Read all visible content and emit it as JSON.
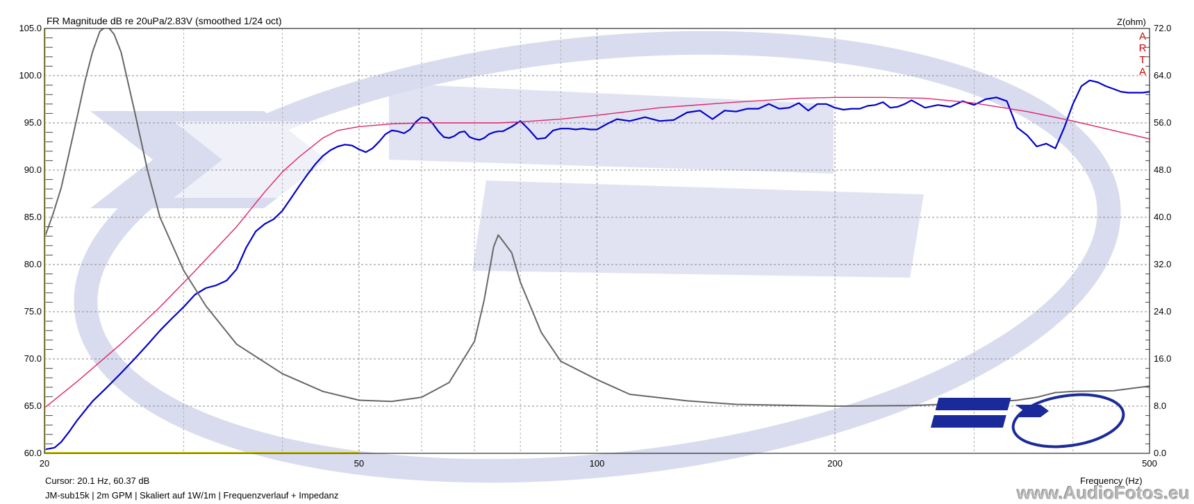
{
  "title": "FR Magnitude dB re 20uPa/2.83V (smoothed 1/24 oct)",
  "right_axis_title": "Z(ohm)",
  "arta_label": [
    "A",
    "R",
    "T",
    "A"
  ],
  "cursor": "Cursor: 20.1 Hz, 60.37 dB",
  "footer": "JM-sub15k | 2m GPM | Skaliert auf 1W/1m | Frequenzverlauf + Impedanz",
  "xlabel": "Frequency (Hz)",
  "watermark": "www.AudioFotos.eu",
  "chart_data": {
    "type": "line",
    "x_scale": "log",
    "xlim": [
      20,
      500
    ],
    "ylim": [
      60,
      105
    ],
    "y2lim": [
      0,
      72
    ],
    "x_ticks": [
      {
        "v": 20,
        "label": "20"
      },
      {
        "v": 50,
        "label": "50"
      },
      {
        "v": 100,
        "label": "100"
      },
      {
        "v": 200,
        "label": "200"
      },
      {
        "v": 500,
        "label": "500"
      }
    ],
    "y_ticks": [
      "60.0",
      "65.0",
      "70.0",
      "75.0",
      "80.0",
      "85.0",
      "90.0",
      "95.0",
      "100.0",
      "105.0"
    ],
    "y2_ticks": [
      "0.0",
      "8.0",
      "16.0",
      "24.0",
      "32.0",
      "40.0",
      "48.0",
      "56.0",
      "64.0",
      "72.0"
    ],
    "grid": true,
    "series": [
      {
        "color": "#0000cc",
        "axis": "left",
        "x": [
          20,
          20.6,
          21,
          21.5,
          22,
          23,
          24,
          25,
          26,
          27,
          28,
          29,
          30,
          31,
          32,
          33,
          34,
          35,
          36,
          37,
          38,
          39,
          40,
          41,
          42,
          43,
          44,
          45,
          46,
          47,
          48,
          49,
          50,
          51,
          52,
          53,
          54,
          55,
          56,
          57,
          58,
          59,
          60,
          61,
          62,
          63,
          64,
          65,
          66,
          67,
          68,
          69,
          70,
          71,
          72,
          73,
          74,
          75,
          76,
          78,
          80,
          82,
          84,
          86,
          88,
          90,
          92,
          94,
          96,
          98,
          100,
          103,
          106,
          110,
          115,
          120,
          125,
          130,
          135,
          140,
          145,
          150,
          155,
          160,
          165,
          170,
          175,
          180,
          185,
          190,
          195,
          200,
          205,
          210,
          215,
          220,
          225,
          230,
          235,
          240,
          245,
          250,
          260,
          270,
          280,
          290,
          300,
          310,
          320,
          330,
          340,
          350,
          360,
          370,
          380,
          390,
          400,
          410,
          420,
          430,
          440,
          450,
          460,
          470,
          480,
          490,
          500
        ],
        "y": [
          60.4,
          60.6,
          61.2,
          62.3,
          63.5,
          65.5,
          67,
          68.5,
          70,
          71.5,
          73,
          74.3,
          75.5,
          76.8,
          77.5,
          77.8,
          78.3,
          79.5,
          81.8,
          83.5,
          84.3,
          84.8,
          85.7,
          87,
          88.3,
          89.5,
          90.6,
          91.5,
          92.1,
          92.5,
          92.7,
          92.6,
          92.2,
          91.9,
          92.3,
          93,
          93.8,
          94.2,
          94.1,
          93.9,
          94.3,
          95.1,
          95.6,
          95.5,
          94.9,
          94.1,
          93.5,
          93.4,
          93.6,
          94,
          94.1,
          93.5,
          93.3,
          93.2,
          93.4,
          93.8,
          94,
          94.1,
          94.1,
          94.6,
          95.2,
          94.3,
          93.3,
          93.4,
          94.2,
          94.4,
          94.4,
          94.3,
          94.4,
          94.3,
          94.3,
          94.9,
          95.4,
          95.2,
          95.6,
          95.2,
          95.3,
          96.1,
          96.3,
          95.4,
          96.3,
          96.2,
          96.5,
          96.5,
          97,
          96.5,
          96.6,
          97.1,
          96.3,
          97,
          97,
          96.6,
          96.4,
          96.5,
          96.5,
          96.8,
          96.9,
          97.2,
          96.6,
          96.7,
          97,
          97.4,
          96.6,
          96.9,
          96.7,
          97.3,
          96.9,
          97.5,
          97.7,
          97.3,
          94.5,
          93.7,
          92.5,
          92.8,
          92.3,
          94.5,
          97,
          98.9,
          99.5,
          99.3,
          98.9,
          98.6,
          98.3,
          98.2,
          98.2,
          98.2,
          98.3
        ]
      },
      {
        "color": "#e0206a",
        "axis": "left",
        "x": [
          20,
          22,
          25,
          28,
          31,
          35,
          38,
          40,
          42,
          45,
          47,
          50,
          55,
          60,
          65,
          70,
          75,
          80,
          90,
          100,
          120,
          150,
          180,
          200,
          230,
          260,
          300,
          350,
          400,
          450,
          500
        ],
        "y": [
          64.8,
          67.6,
          71.6,
          75.5,
          79.3,
          84,
          87.7,
          89.8,
          91.4,
          93.4,
          94.2,
          94.6,
          94.9,
          95,
          95,
          95,
          95,
          95.1,
          95.4,
          95.8,
          96.6,
          97.2,
          97.6,
          97.7,
          97.7,
          97.6,
          97.1,
          96.2,
          95.2,
          94.2,
          93.3
        ]
      },
      {
        "color": "#666666",
        "axis": "right",
        "x": [
          20,
          20.5,
          21,
          21.5,
          22,
          22.5,
          23,
          23.5,
          24,
          24.5,
          25,
          26,
          27,
          28,
          30,
          32,
          35,
          40,
          45,
          50,
          55,
          60,
          65,
          70,
          72,
          74,
          75,
          76,
          78,
          80,
          85,
          90,
          100,
          110,
          130,
          150,
          200,
          250,
          300,
          340,
          360,
          380,
          400,
          450,
          500
        ],
        "y": [
          36.5,
          40.5,
          45,
          51,
          57,
          63,
          68,
          71.5,
          72.5,
          71,
          68,
          58,
          48,
          40,
          31,
          25,
          18.5,
          13.5,
          10.5,
          9,
          8.8,
          9.5,
          12,
          19,
          26,
          35,
          37,
          36,
          34,
          29,
          20.5,
          15.6,
          12.5,
          10,
          8.9,
          8.3,
          8,
          8.1,
          8.5,
          9,
          9.5,
          10.3,
          10.5,
          10.6,
          11.4
        ]
      }
    ]
  }
}
